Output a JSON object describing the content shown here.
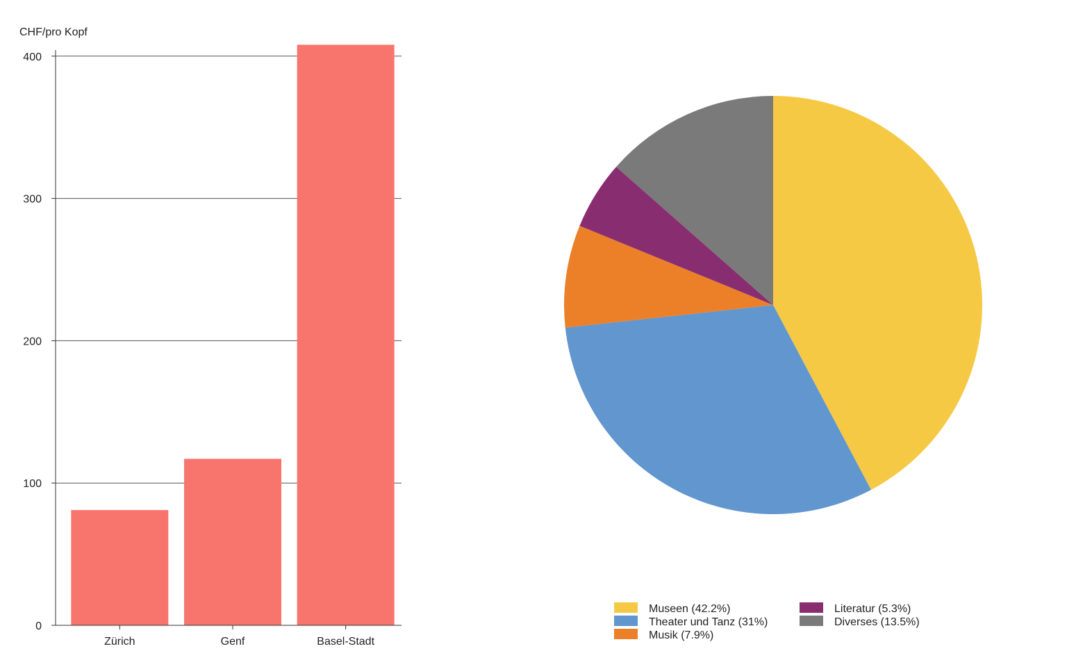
{
  "colors": {
    "bar": "#f8756d",
    "grid": "#555555",
    "axis": "#333333"
  },
  "chart_data": [
    {
      "type": "bar",
      "title": "",
      "xlabel": "",
      "ylabel": "CHF/pro Kopf",
      "categories": [
        "Zürich",
        "Genf",
        "Basel-Stadt"
      ],
      "values": [
        81,
        117,
        408
      ],
      "ylim": [
        0,
        400
      ],
      "yticks": [
        "0",
        "100",
        "200",
        "300",
        "400"
      ],
      "grid": true,
      "legend": "none"
    },
    {
      "type": "pie",
      "title": "",
      "legend": "bottom",
      "slices": [
        {
          "label": "Museen (42.2%)",
          "value": 42.2,
          "color": "#f6c945"
        },
        {
          "label": "Theater und Tanz (31%)",
          "value": 31,
          "color": "#6196cf"
        },
        {
          "label": "Musik (7.9%)",
          "value": 7.9,
          "color": "#ec8029"
        },
        {
          "label": "Literatur (5.3%)",
          "value": 5.3,
          "color": "#892d71"
        },
        {
          "label": "Diverses (13.5%)",
          "value": 13.5,
          "color": "#7a7a7a"
        }
      ]
    }
  ]
}
